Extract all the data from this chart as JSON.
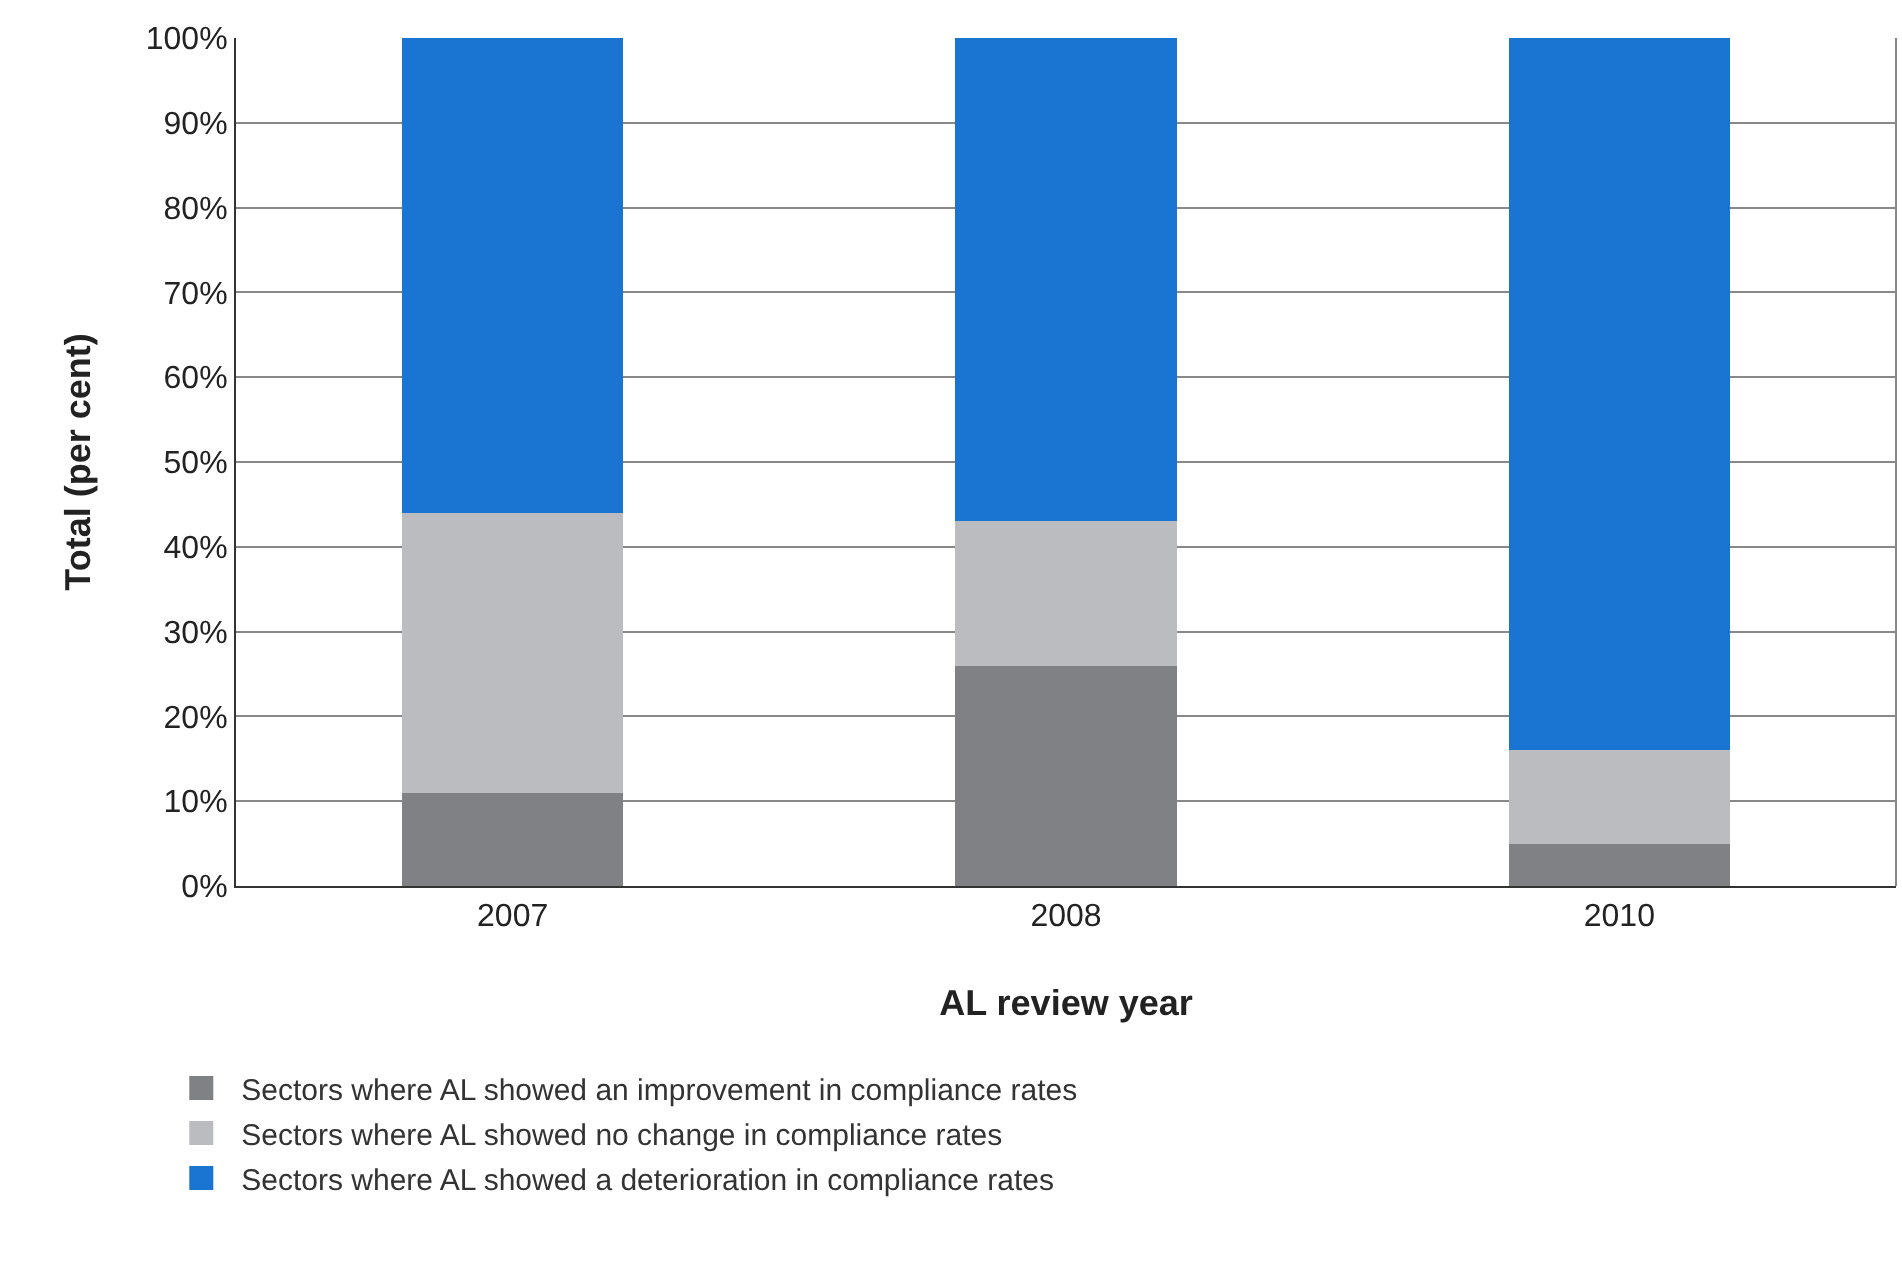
{
  "chart_data": {
    "type": "bar",
    "stacked": true,
    "xlabel": "AL review year",
    "ylabel": "Total (per cent)",
    "categories": [
      "2007",
      "2008",
      "2010"
    ],
    "series": [
      {
        "name": "Sectors where AL showed an improvement in compliance rates",
        "color": "#808184",
        "values": [
          11,
          26,
          5
        ]
      },
      {
        "name": "Sectors where AL showed no change in compliance rates",
        "color": "#bbbcc0",
        "values": [
          33,
          17,
          11
        ]
      },
      {
        "name": "Sectors where AL showed a deterioration in compliance rates",
        "color": "#1a75d2",
        "values": [
          56,
          57,
          84
        ]
      }
    ],
    "ylim": [
      0,
      100
    ],
    "yticks": [
      {
        "value": 0,
        "label": "0%"
      },
      {
        "value": 10,
        "label": "10%"
      },
      {
        "value": 20,
        "label": "20%"
      },
      {
        "value": 30,
        "label": "30%"
      },
      {
        "value": 40,
        "label": "40%"
      },
      {
        "value": 50,
        "label": "50%"
      },
      {
        "value": 60,
        "label": "60%"
      },
      {
        "value": 70,
        "label": "70%"
      },
      {
        "value": 80,
        "label": "80%"
      },
      {
        "value": 90,
        "label": "90%"
      },
      {
        "value": 100,
        "label": "100%"
      }
    ],
    "grid": "y",
    "legend": "bottom"
  }
}
